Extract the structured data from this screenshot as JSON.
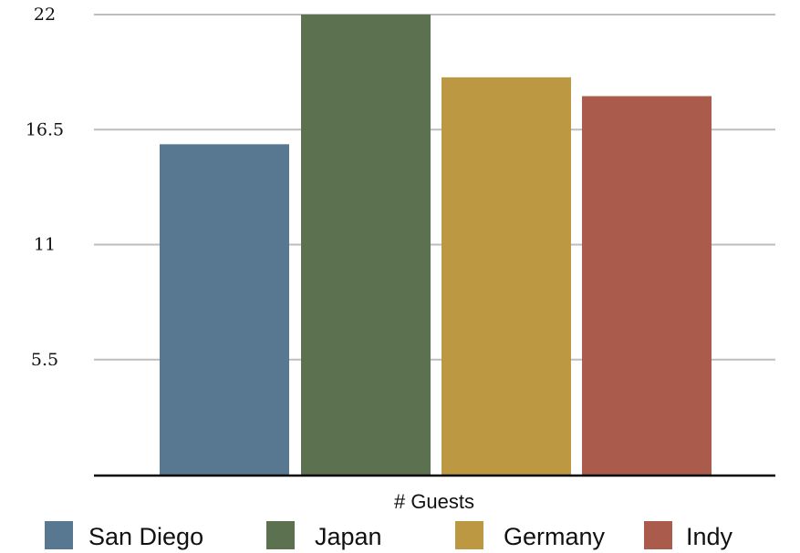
{
  "chart_data": {
    "type": "bar",
    "title": "",
    "xlabel": "# Guests",
    "ylabel": "",
    "categories": [
      "San Diego",
      "Japan",
      "Germany",
      "Indy"
    ],
    "values": [
      15.8,
      22.0,
      19.0,
      18.1
    ],
    "colors": [
      "#587892",
      "#5b7150",
      "#bb9841",
      "#ab5b4b"
    ],
    "ylim": [
      0,
      22
    ],
    "yticks": [
      5.5,
      11,
      16.5,
      22
    ],
    "ytick_labels": [
      "5.5",
      "11",
      "16.5",
      "22"
    ],
    "grid": true,
    "legend": [
      "San Diego",
      "Japan",
      "Germany",
      "Indy"
    ],
    "legend_position": "bottom"
  }
}
